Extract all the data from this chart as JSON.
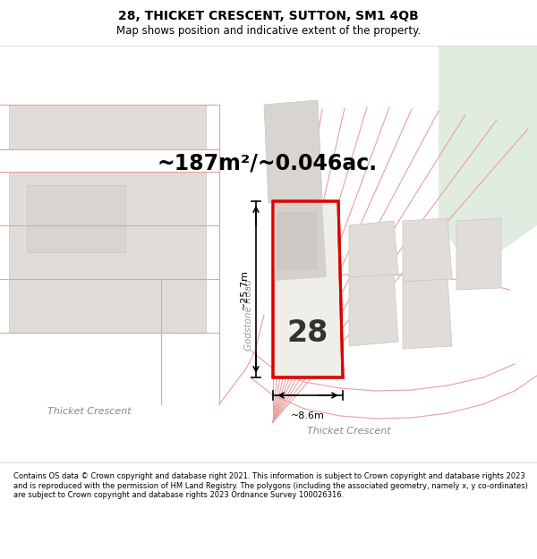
{
  "title": "28, THICKET CRESCENT, SUTTON, SM1 4QB",
  "subtitle": "Map shows position and indicative extent of the property.",
  "area_text": "~187m²/~0.046ac.",
  "label_number": "28",
  "dim_width": "~8.6m",
  "dim_height": "~25.7m",
  "road_label_left": "Thicket Crescent",
  "road_label_right": "Thicket Crescent",
  "road_label_godstone": "Godstone Road",
  "footer": "Contains OS data © Crown copyright and database right 2021. This information is subject to Crown copyright and database rights 2023 and is reproduced with the permission of HM Land Registry. The polygons (including the associated geometry, namely x, y co-ordinates) are subject to Crown copyright and database rights 2023 Ordnance Survey 100026316.",
  "map_bg": "#ffffff",
  "plot_fill": "#f0eee8",
  "plot_outline": "#dd0000",
  "boundary_color": "#e8a0a0",
  "building_fill": "#e0ddd8",
  "building_edge": "#c8c5c0",
  "green_area": "#e0ece0",
  "white": "#ffffff",
  "title_fontsize": 10,
  "subtitle_fontsize": 8.5,
  "area_fontsize": 17,
  "label_fontsize": 24,
  "road_fontsize": 8,
  "dim_fontsize": 8,
  "footer_fontsize": 6.0
}
